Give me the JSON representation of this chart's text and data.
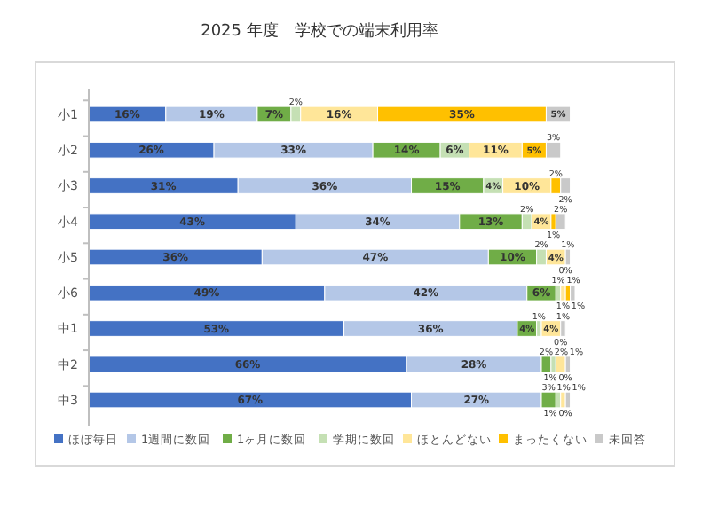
{
  "chart_data": {
    "type": "bar",
    "orientation": "horizontal",
    "stacked": true,
    "title": "2025 年度　学校での端末利用率",
    "categories": [
      "小1",
      "小2",
      "小3",
      "小4",
      "小5",
      "小6",
      "中1",
      "中2",
      "中3"
    ],
    "series": [
      {
        "name": "ほぼ毎日",
        "color": "#4472c4",
        "values": [
          16,
          26,
          31,
          43,
          36,
          49,
          53,
          66,
          67
        ],
        "value_labels": [
          "16%",
          "26%",
          "31%",
          "43%",
          "36%",
          "49%",
          "53%",
          "66%",
          "67%"
        ]
      },
      {
        "name": "1週間に数回",
        "color": "#b4c7e7",
        "values": [
          19,
          33,
          36,
          34,
          47,
          42,
          36,
          28,
          27
        ],
        "value_labels": [
          "19%",
          "33%",
          "36%",
          "34%",
          "47%",
          "42%",
          "36%",
          "28%",
          "27%"
        ]
      },
      {
        "name": "1ヶ月に数回",
        "color": "#70ad47",
        "values": [
          7,
          14,
          15,
          13,
          10,
          6,
          4,
          2,
          3
        ],
        "value_labels": [
          "7%",
          "14%",
          "15%",
          "13%",
          "10%",
          "6%",
          "4%",
          "2%",
          "3%"
        ]
      },
      {
        "name": "学期に数回",
        "color": "#c5e0b4",
        "values": [
          2,
          6,
          4,
          2,
          2,
          1,
          1,
          1,
          1
        ],
        "value_labels": [
          "2%",
          "6%",
          "4%",
          "2%",
          "2%",
          "1%",
          "1%",
          "1%",
          "1%"
        ]
      },
      {
        "name": "ほとんどない",
        "color": "#ffe699",
        "values": [
          16,
          11,
          10,
          4,
          4,
          1,
          4,
          2,
          1
        ],
        "value_labels": [
          "16%",
          "11%",
          "10%",
          "4%",
          "4%",
          "1%",
          "4%",
          "2%",
          "1%"
        ]
      },
      {
        "name": "まったくない",
        "color": "#ffc000",
        "values": [
          35,
          5,
          2,
          1,
          0,
          1,
          0,
          0,
          0
        ],
        "value_labels": [
          "35%",
          "5%",
          "2%",
          "1%",
          "0%",
          "1%",
          "0%",
          "0%",
          "0%"
        ]
      },
      {
        "name": "未回答",
        "color": "#c9c9c9",
        "values": [
          5,
          3,
          2,
          2,
          1,
          1,
          1,
          1,
          1
        ],
        "value_labels": [
          "5%",
          "3%",
          "2%",
          "2%",
          "1%",
          "1%",
          "1%",
          "1%",
          "1%"
        ]
      }
    ],
    "legend": "bottom",
    "grid": false
  }
}
